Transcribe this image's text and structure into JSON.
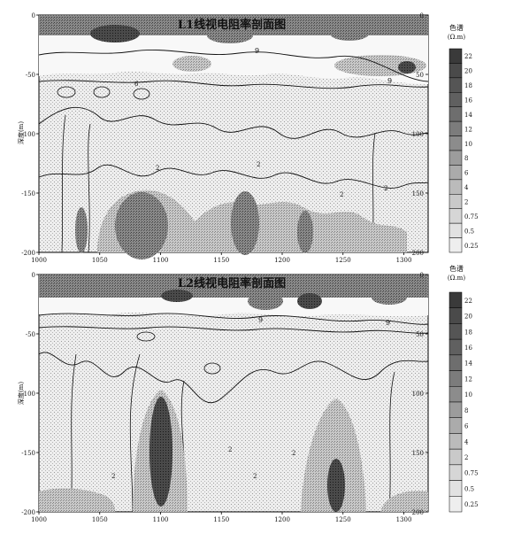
{
  "colors": {
    "background": "#ffffff",
    "frame": "#000000",
    "contour_line": "#111111",
    "stipple_light": "#e4e4e4",
    "stipple_mid": "#bdbdbd",
    "level_dark": "#6e6e6e",
    "level_darkest": "#333333"
  },
  "chart_data": [
    {
      "type": "contour",
      "title": "L1线视电阻率剖面图",
      "ylabel": "深度(m)",
      "xlim": [
        1000,
        1320
      ],
      "ylim": [
        -200,
        0
      ],
      "x_ticks": [
        "1000",
        "1050",
        "1100",
        "1150",
        "1200",
        "1250",
        "1300"
      ],
      "y_ticks_left": [
        "0",
        "-50",
        "-100",
        "-150",
        "-200"
      ],
      "y_ticks_right": [
        "0",
        "50",
        "100",
        "150",
        "200"
      ],
      "contour_labels": [
        "9",
        "9",
        "6",
        "2",
        "2",
        "2",
        "2"
      ],
      "colorbar": {
        "title": "色谱",
        "unit": "(Ω.m)",
        "labels": [
          "22",
          "20",
          "18",
          "16",
          "14",
          "12",
          "10",
          "8",
          "6",
          "4",
          "2",
          "0.75",
          "0.5",
          "0.25"
        ]
      }
    },
    {
      "type": "contour",
      "title": "L2线视电阻率剖面图",
      "ylabel": "深度(m)",
      "xlim": [
        1000,
        1320
      ],
      "ylim": [
        -200,
        0
      ],
      "x_ticks": [
        "1000",
        "1050",
        "1100",
        "1150",
        "1200",
        "1250",
        "1300"
      ],
      "y_ticks_left": [
        "0",
        "-50",
        "-100",
        "-150",
        "-200"
      ],
      "y_ticks_right": [
        "0",
        "50",
        "100",
        "150",
        "200"
      ],
      "contour_labels": [
        "9",
        "9",
        "2",
        "2",
        "2",
        "2"
      ],
      "colorbar": {
        "title": "色谱",
        "unit": "(Ω.m)",
        "labels": [
          "22",
          "20",
          "18",
          "16",
          "14",
          "12",
          "10",
          "8",
          "6",
          "4",
          "2",
          "0.75",
          "0.5",
          "0.25"
        ]
      }
    }
  ]
}
